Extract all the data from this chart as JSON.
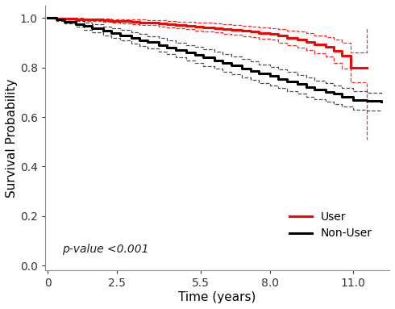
{
  "title": "",
  "xlabel": "Time (years)",
  "ylabel": "Survival Probability",
  "xlim": [
    -0.1,
    12.3
  ],
  "ylim": [
    -0.02,
    1.05
  ],
  "xticks": [
    0,
    2.5,
    5.5,
    8.0,
    11.0
  ],
  "yticks": [
    0.0,
    0.2,
    0.4,
    0.6,
    0.8,
    1.0
  ],
  "pvalue_text": "p-value <0.001",
  "user_color": "#ff0000",
  "nonuser_color": "#000000",
  "background_color": "#ffffff",
  "user_curve": {
    "x": [
      0,
      0.3,
      0.6,
      1.0,
      1.3,
      1.6,
      2.0,
      2.3,
      2.6,
      3.0,
      3.3,
      3.6,
      4.0,
      4.3,
      4.6,
      5.0,
      5.3,
      5.6,
      6.0,
      6.3,
      6.6,
      7.0,
      7.3,
      7.6,
      8.0,
      8.3,
      8.6,
      9.0,
      9.3,
      9.6,
      10.0,
      10.3,
      10.6,
      10.9,
      10.9,
      11.5
    ],
    "y": [
      1.0,
      0.999,
      0.998,
      0.996,
      0.994,
      0.993,
      0.991,
      0.989,
      0.987,
      0.985,
      0.983,
      0.981,
      0.978,
      0.975,
      0.972,
      0.969,
      0.966,
      0.963,
      0.959,
      0.956,
      0.952,
      0.948,
      0.944,
      0.94,
      0.936,
      0.928,
      0.92,
      0.912,
      0.904,
      0.894,
      0.884,
      0.866,
      0.848,
      0.82,
      0.8,
      0.8
    ],
    "upper": [
      1.0,
      1.0,
      1.0,
      1.0,
      0.999,
      0.998,
      0.997,
      0.996,
      0.995,
      0.994,
      0.993,
      0.992,
      0.99,
      0.988,
      0.986,
      0.984,
      0.982,
      0.98,
      0.977,
      0.975,
      0.972,
      0.969,
      0.966,
      0.963,
      0.96,
      0.955,
      0.95,
      0.944,
      0.938,
      0.93,
      0.922,
      0.912,
      0.9,
      0.88,
      0.86,
      0.96
    ],
    "lower": [
      1.0,
      0.998,
      0.996,
      0.993,
      0.989,
      0.987,
      0.985,
      0.982,
      0.979,
      0.976,
      0.973,
      0.97,
      0.966,
      0.962,
      0.958,
      0.954,
      0.95,
      0.946,
      0.941,
      0.937,
      0.932,
      0.927,
      0.922,
      0.917,
      0.912,
      0.901,
      0.89,
      0.88,
      0.87,
      0.858,
      0.846,
      0.82,
      0.796,
      0.76,
      0.74,
      0.51
    ]
  },
  "nonuser_curve": {
    "x": [
      0,
      0.3,
      0.6,
      1.0,
      1.3,
      1.6,
      2.0,
      2.3,
      2.6,
      3.0,
      3.3,
      3.6,
      4.0,
      4.3,
      4.6,
      5.0,
      5.3,
      5.6,
      6.0,
      6.3,
      6.6,
      7.0,
      7.3,
      7.6,
      8.0,
      8.3,
      8.6,
      9.0,
      9.3,
      9.6,
      10.0,
      10.3,
      10.6,
      11.0,
      11.5,
      12.0
    ],
    "y": [
      1.0,
      0.993,
      0.986,
      0.976,
      0.967,
      0.958,
      0.948,
      0.939,
      0.93,
      0.92,
      0.911,
      0.902,
      0.891,
      0.881,
      0.871,
      0.86,
      0.85,
      0.84,
      0.829,
      0.819,
      0.808,
      0.797,
      0.787,
      0.776,
      0.765,
      0.754,
      0.744,
      0.733,
      0.722,
      0.712,
      0.702,
      0.693,
      0.683,
      0.67,
      0.666,
      0.663
    ],
    "upper": [
      1.0,
      0.998,
      0.994,
      0.987,
      0.981,
      0.974,
      0.966,
      0.958,
      0.951,
      0.943,
      0.935,
      0.927,
      0.918,
      0.91,
      0.901,
      0.891,
      0.882,
      0.873,
      0.863,
      0.854,
      0.844,
      0.834,
      0.824,
      0.813,
      0.803,
      0.792,
      0.781,
      0.77,
      0.759,
      0.748,
      0.737,
      0.727,
      0.716,
      0.703,
      0.698,
      0.693
    ],
    "lower": [
      1.0,
      0.988,
      0.977,
      0.964,
      0.953,
      0.941,
      0.929,
      0.919,
      0.909,
      0.897,
      0.887,
      0.876,
      0.864,
      0.853,
      0.841,
      0.829,
      0.818,
      0.807,
      0.795,
      0.784,
      0.772,
      0.76,
      0.749,
      0.738,
      0.727,
      0.716,
      0.705,
      0.694,
      0.683,
      0.673,
      0.663,
      0.653,
      0.643,
      0.63,
      0.626,
      0.622
    ]
  }
}
